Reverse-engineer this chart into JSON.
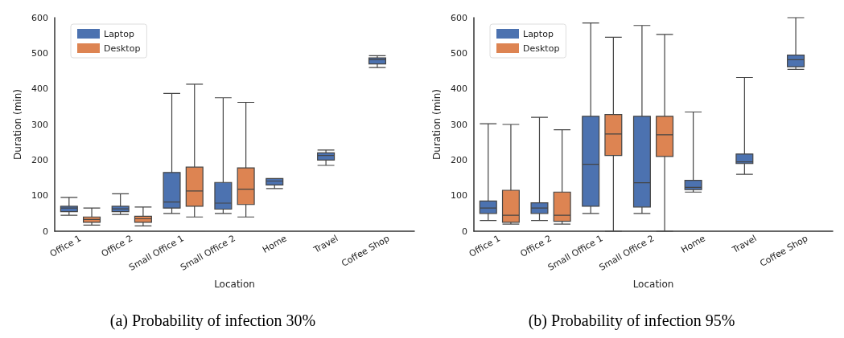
{
  "chart_data": [
    {
      "type": "box",
      "xlabel": "Location",
      "ylabel": "Duration (min)",
      "categories": [
        "Office 1",
        "Office 2",
        "Small Office 1",
        "Small Office 2",
        "Home",
        "Travel",
        "Coffee Shop"
      ],
      "series": [
        {
          "name": "Laptop",
          "color": "#4c72b0",
          "boxes": [
            {
              "low": 45,
              "q1": 55,
              "median": 65,
              "q3": 70,
              "high": 95
            },
            {
              "low": 47,
              "q1": 55,
              "median": 63,
              "q3": 70,
              "high": 105
            },
            {
              "low": 50,
              "q1": 65,
              "median": 82,
              "q3": 165,
              "high": 387
            },
            {
              "low": 50,
              "q1": 62,
              "median": 79,
              "q3": 137,
              "high": 375
            },
            {
              "low": 120,
              "q1": 130,
              "median": 141,
              "q3": 148,
              "high": 148
            },
            {
              "low": 185,
              "q1": 200,
              "median": 213,
              "q3": 220,
              "high": 228
            },
            {
              "low": 460,
              "q1": 470,
              "median": 482,
              "q3": 487,
              "high": 493
            }
          ]
        },
        {
          "name": "Desktop",
          "color": "#dd8452",
          "boxes": [
            {
              "low": 17,
              "q1": 25,
              "median": 33,
              "q3": 40,
              "high": 65
            },
            {
              "low": 15,
              "q1": 25,
              "median": 35,
              "q3": 42,
              "high": 68
            },
            {
              "low": 40,
              "q1": 70,
              "median": 113,
              "q3": 180,
              "high": 413
            },
            {
              "low": 40,
              "q1": 75,
              "median": 118,
              "q3": 178,
              "high": 362
            },
            null,
            null,
            null
          ]
        }
      ],
      "ylim": [
        0,
        600
      ],
      "yticks": [
        0,
        100,
        200,
        300,
        400,
        500,
        600
      ],
      "grid": false,
      "legend": "top left",
      "annotations": [
        "(a) Probability of infection 30%"
      ]
    },
    {
      "type": "box",
      "xlabel": "Location",
      "ylabel": "Duration (min)",
      "categories": [
        "Office 1",
        "Office 2",
        "Small Office 1",
        "Small Office 2",
        "Home",
        "Travel",
        "Coffee Shop"
      ],
      "series": [
        {
          "name": "Laptop",
          "color": "#4c72b0",
          "boxes": [
            {
              "low": 30,
              "q1": 50,
              "median": 65,
              "q3": 85,
              "high": 302
            },
            {
              "low": 30,
              "q1": 50,
              "median": 65,
              "q3": 80,
              "high": 320
            },
            {
              "low": 50,
              "q1": 70,
              "median": 188,
              "q3": 323,
              "high": 585
            },
            {
              "low": 50,
              "q1": 68,
              "median": 136,
              "q3": 323,
              "high": 578
            },
            {
              "low": 110,
              "q1": 117,
              "median": 123,
              "q3": 143,
              "high": 335
            },
            {
              "low": 160,
              "q1": 190,
              "median": 195,
              "q3": 217,
              "high": 432
            },
            {
              "low": 455,
              "q1": 462,
              "median": 482,
              "q3": 495,
              "high": 600
            }
          ]
        },
        {
          "name": "Desktop",
          "color": "#dd8452",
          "boxes": [
            {
              "low": 20,
              "q1": 25,
              "median": 45,
              "q3": 115,
              "high": 300
            },
            {
              "low": 20,
              "q1": 28,
              "median": 45,
              "q3": 110,
              "high": 285
            },
            {
              "low": 0,
              "q1": 213,
              "median": 273,
              "q3": 328,
              "high": 545
            },
            {
              "low": 0,
              "q1": 210,
              "median": 271,
              "q3": 323,
              "high": 553
            },
            null,
            null,
            null
          ]
        }
      ],
      "ylim": [
        0,
        600
      ],
      "yticks": [
        0,
        100,
        200,
        300,
        400,
        500,
        600
      ],
      "grid": false,
      "legend": "top left",
      "annotations": [
        "(b) Probability of infection 95%"
      ]
    }
  ]
}
